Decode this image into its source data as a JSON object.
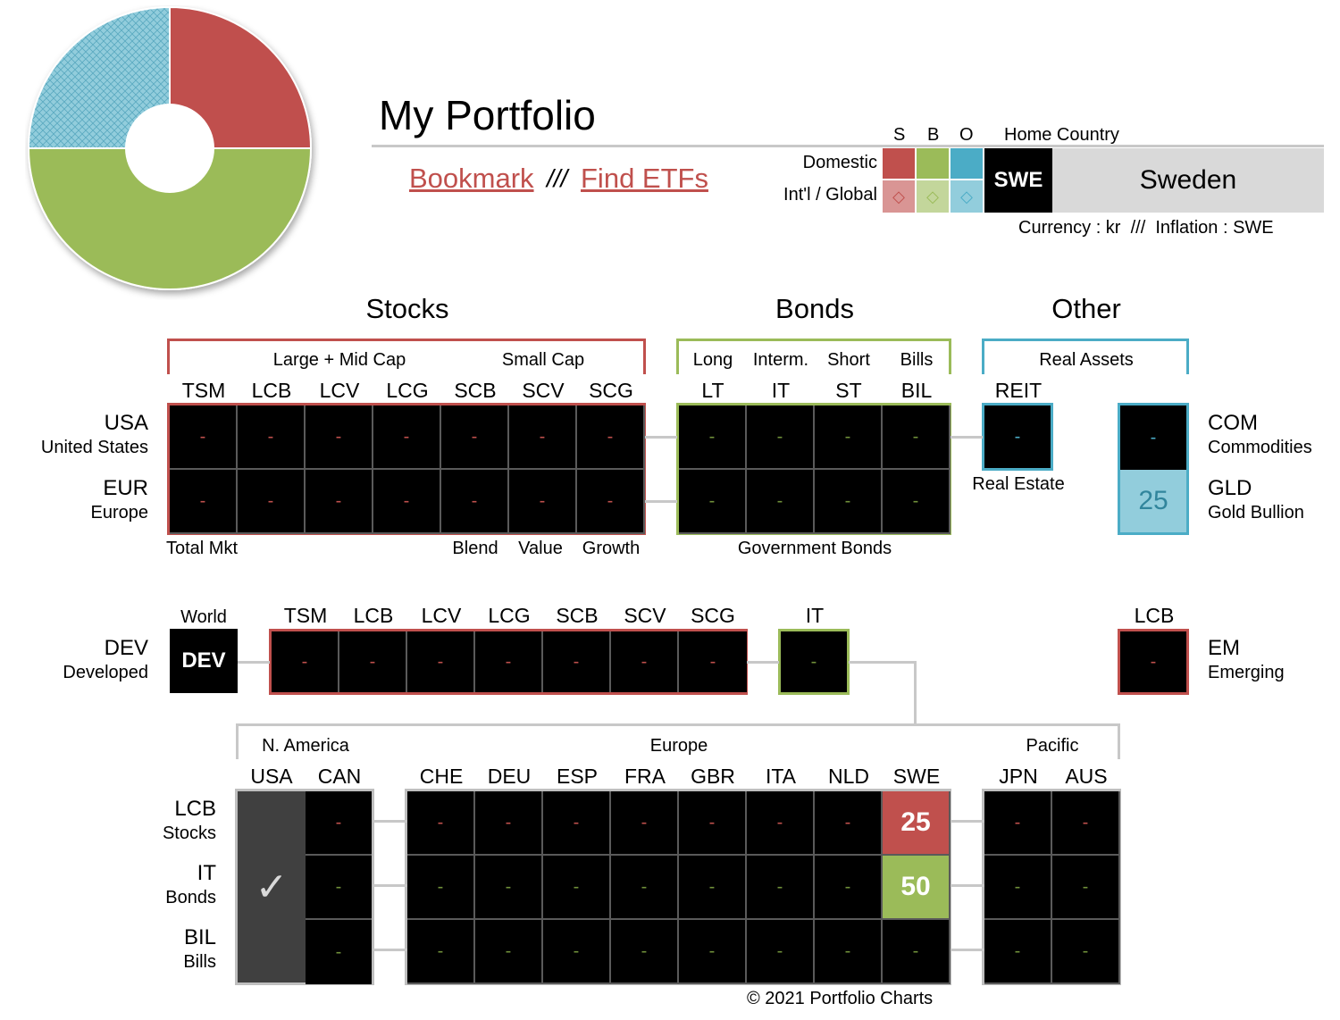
{
  "header": {
    "title": "My Portfolio",
    "bookmark": "Bookmark",
    "separator": "///",
    "find_etfs": "Find ETFs"
  },
  "legend": {
    "cols": [
      "S",
      "B",
      "O"
    ],
    "home_country_label": "Home Country",
    "domestic": "Domestic",
    "intl": "Int'l / Global",
    "diamond": "◇",
    "country_code": "SWE",
    "country_name": "Sweden",
    "currency_text": "Currency : kr  ///  Inflation : SWE",
    "colors": {
      "stocks": "#c0504d",
      "bonds": "#9bbb59",
      "other": "#4bacc6"
    }
  },
  "sections": {
    "stocks": "Stocks",
    "bonds": "Bonds",
    "other": "Other"
  },
  "stocks": {
    "group_large": "Large + Mid Cap",
    "group_small": "Small Cap",
    "columns": [
      "TSM",
      "LCB",
      "LCV",
      "LCG",
      "SCB",
      "SCV",
      "SCG"
    ],
    "footer_total": "Total Mkt",
    "footer_blend": "Blend",
    "footer_value": "Value",
    "footer_growth": "Growth"
  },
  "bonds": {
    "groups": [
      "Long",
      "Interm.",
      "Short",
      "Bills"
    ],
    "columns": [
      "LT",
      "IT",
      "ST",
      "BIL"
    ],
    "footer": "Government Bonds"
  },
  "other": {
    "group": "Real Assets",
    "reit": "REIT",
    "real_estate": "Real Estate",
    "com_code": "COM",
    "com_name": "Commodities",
    "gld_code": "GLD",
    "gld_name": "Gold Bullion",
    "gld_value": "25"
  },
  "regions": {
    "usa_code": "USA",
    "usa_name": "United States",
    "eur_code": "EUR",
    "eur_name": "Europe",
    "dev_code": "DEV",
    "dev_name": "Developed",
    "world": "World",
    "em_code": "EM",
    "em_name": "Emerging",
    "em_col": "LCB",
    "dev_it": "IT"
  },
  "countries": {
    "groups": {
      "na": "N. America",
      "eu": "Europe",
      "pac": "Pacific"
    },
    "na": [
      "USA",
      "CAN"
    ],
    "eu": [
      "CHE",
      "DEU",
      "ESP",
      "FRA",
      "GBR",
      "ITA",
      "NLD",
      "SWE"
    ],
    "pac": [
      "JPN",
      "AUS"
    ],
    "rows": [
      {
        "code": "LCB",
        "name": "Stocks"
      },
      {
        "code": "IT",
        "name": "Bonds"
      },
      {
        "code": "BIL",
        "name": "Bills"
      }
    ],
    "swe_lcb": "25",
    "swe_it": "50",
    "check": "✓"
  },
  "chart_data": {
    "type": "pie",
    "labels": [
      "Stocks",
      "Bonds",
      "Other"
    ],
    "values": [
      25,
      50,
      25
    ],
    "colors": [
      "#c0504d",
      "#9bbb59",
      "#92cddc"
    ]
  },
  "empty_mark": "-",
  "footer": "© 2021 Portfolio Charts"
}
